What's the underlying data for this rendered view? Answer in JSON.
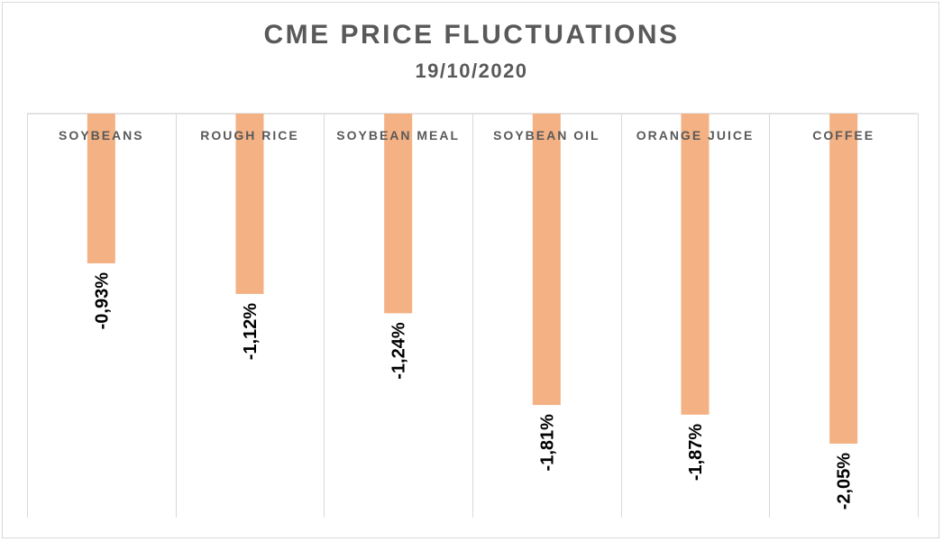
{
  "chart_data": {
    "type": "bar",
    "title": "CME PRICE FLUCTUATIONS",
    "subtitle": "19/10/2020",
    "categories": [
      "SOYBEANS",
      "ROUGH RICE",
      "SOYBEAN MEAL",
      "SOYBEAN OIL",
      "ORANGE JUICE",
      "COFFEE"
    ],
    "values": [
      -0.93,
      -1.12,
      -1.24,
      -1.81,
      -1.87,
      -2.05
    ],
    "value_labels": [
      "-0,93%",
      "-1,12%",
      "-1,24%",
      "-1,81%",
      "-1,87%",
      "-2,05%"
    ],
    "unit": "%",
    "ylim": [
      -2.5,
      0
    ],
    "grid": "vertical category separators",
    "bar_color": "#f4b183",
    "text_color": "#595959",
    "grid_color": "#d9d9d9"
  }
}
